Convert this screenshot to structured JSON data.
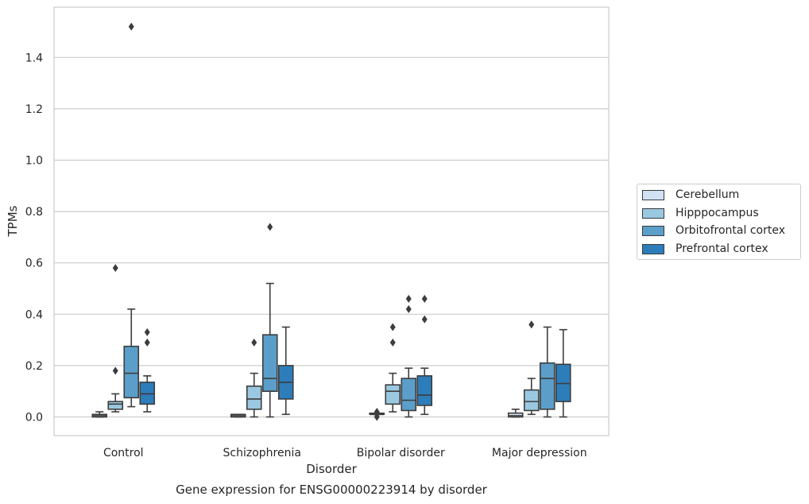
{
  "chart_data": {
    "type": "box",
    "title": "Gene expression for ENSG00000223914 by disorder",
    "xlabel": "Disorder",
    "ylabel": "TPMs",
    "ylim": [
      -0.07,
      1.6
    ],
    "yticks": [
      "0.0",
      "0.2",
      "0.4",
      "0.6",
      "0.8",
      "1.0",
      "1.2",
      "1.4"
    ],
    "categories": [
      "Control",
      "Schizophrenia",
      "Bipolar disorder",
      "Major depression"
    ],
    "grid": true,
    "legend_position": "right",
    "series": [
      {
        "name": "Cerebellum",
        "color": "#d1e2f2",
        "boxes": [
          {
            "whisker_low": 0.0,
            "q1": 0.0,
            "median": 0.005,
            "q3": 0.01,
            "whisker_high": 0.02,
            "outliers": []
          },
          {
            "whisker_low": 0.0,
            "q1": 0.0,
            "median": 0.005,
            "q3": 0.01,
            "whisker_high": 0.01,
            "outliers": []
          },
          {
            "whisker_low": 0.01,
            "q1": 0.01,
            "median": 0.01,
            "q3": 0.01,
            "whisker_high": 0.01,
            "outliers": [
              0.0,
              0.01,
              0.02
            ]
          },
          {
            "whisker_low": 0.0,
            "q1": 0.0,
            "median": 0.005,
            "q3": 0.015,
            "whisker_high": 0.03,
            "outliers": []
          }
        ]
      },
      {
        "name": "Hipppocampus",
        "color": "#9ac8e0",
        "boxes": [
          {
            "whisker_low": 0.02,
            "q1": 0.03,
            "median": 0.05,
            "q3": 0.06,
            "whisker_high": 0.09,
            "outliers": [
              0.18,
              0.58
            ]
          },
          {
            "whisker_low": 0.0,
            "q1": 0.03,
            "median": 0.07,
            "q3": 0.12,
            "whisker_high": 0.17,
            "outliers": [
              0.29
            ]
          },
          {
            "whisker_low": 0.02,
            "q1": 0.05,
            "median": 0.1,
            "q3": 0.125,
            "whisker_high": 0.17,
            "outliers": [
              0.29,
              0.35
            ]
          },
          {
            "whisker_low": 0.01,
            "q1": 0.025,
            "median": 0.06,
            "q3": 0.105,
            "whisker_high": 0.15,
            "outliers": [
              0.36
            ]
          }
        ]
      },
      {
        "name": "Orbitofrontal cortex",
        "color": "#5b9ec9",
        "boxes": [
          {
            "whisker_low": 0.04,
            "q1": 0.075,
            "median": 0.17,
            "q3": 0.275,
            "whisker_high": 0.42,
            "outliers": [
              1.52
            ]
          },
          {
            "whisker_low": 0.0,
            "q1": 0.1,
            "median": 0.15,
            "q3": 0.32,
            "whisker_high": 0.52,
            "outliers": [
              0.74
            ]
          },
          {
            "whisker_low": 0.0,
            "q1": 0.025,
            "median": 0.065,
            "q3": 0.15,
            "whisker_high": 0.19,
            "outliers": [
              0.42,
              0.46
            ]
          },
          {
            "whisker_low": 0.0,
            "q1": 0.03,
            "median": 0.15,
            "q3": 0.21,
            "whisker_high": 0.35,
            "outliers": []
          }
        ]
      },
      {
        "name": "Prefrontal cortex",
        "color": "#2d7dbb",
        "boxes": [
          {
            "whisker_low": 0.02,
            "q1": 0.05,
            "median": 0.09,
            "q3": 0.135,
            "whisker_high": 0.16,
            "outliers": [
              0.29,
              0.33
            ]
          },
          {
            "whisker_low": 0.01,
            "q1": 0.07,
            "median": 0.135,
            "q3": 0.2,
            "whisker_high": 0.35,
            "outliers": []
          },
          {
            "whisker_low": 0.01,
            "q1": 0.045,
            "median": 0.085,
            "q3": 0.16,
            "whisker_high": 0.19,
            "outliers": [
              0.38,
              0.46
            ]
          },
          {
            "whisker_low": 0.0,
            "q1": 0.06,
            "median": 0.13,
            "q3": 0.205,
            "whisker_high": 0.34,
            "outliers": []
          }
        ]
      }
    ]
  }
}
